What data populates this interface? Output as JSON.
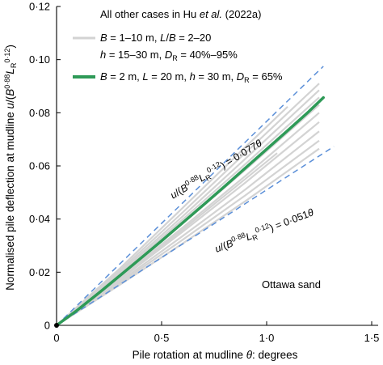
{
  "chart_data": {
    "type": "line",
    "xlabel": "Pile rotation at mudline θ: degrees",
    "ylabel": "Normalised pile deflection at mudline u/(B^0·88 L_R^0·12)",
    "xlim": [
      0,
      1.5
    ],
    "ylim": [
      0,
      0.12
    ],
    "x_ticks": [
      "0",
      "0·5",
      "1·0",
      "1·5"
    ],
    "x_tick_values": [
      0,
      0.5,
      1.0,
      1.5
    ],
    "y_ticks": [
      "0",
      "0·02",
      "0·04",
      "0·06",
      "0·08",
      "0·10",
      "0·12"
    ],
    "y_tick_values": [
      0,
      0.02,
      0.04,
      0.06,
      0.08,
      0.1,
      0.12
    ],
    "grid": false,
    "legend_position": "top-left",
    "legend": {
      "grey_title_a": "All other cases  in Hu ",
      "grey_title_et_al": "et al.",
      "grey_title_b": " (2022a)",
      "grey_line1": "B = 1–10 m, L/B = 2–20",
      "grey_line2": "h = 15–30 m, D_R = 40%–95%",
      "green_line": "B = 2 m, L = 20 m, h = 30 m, D_R = 65%"
    },
    "annotation_upper": "u/(B^0·88 L_R^0·12) = 0·077θ",
    "annotation_lower": "u/(B^0·88 L_R^0·12) = 0·051θ",
    "annotation_sand": "Ottawa sand",
    "series": [
      {
        "style": "dashed",
        "color": "#5b8fd8",
        "points": [
          [
            0,
            0
          ],
          [
            1.27,
            0.0975
          ]
        ]
      },
      {
        "style": "dashed",
        "color": "#5b8fd8",
        "points": [
          [
            0,
            0
          ],
          [
            1.32,
            0.0673
          ]
        ]
      },
      {
        "style": "bold",
        "color": "#2e9a57",
        "points": [
          [
            0,
            0
          ],
          [
            0.1,
            0.0058
          ],
          [
            0.2,
            0.0121
          ],
          [
            0.3,
            0.0186
          ],
          [
            0.4,
            0.0252
          ],
          [
            0.5,
            0.0318
          ],
          [
            0.6,
            0.0386
          ],
          [
            0.7,
            0.0454
          ],
          [
            0.8,
            0.0523
          ],
          [
            0.9,
            0.0593
          ],
          [
            1.0,
            0.0663
          ],
          [
            1.1,
            0.0733
          ],
          [
            1.2,
            0.0804
          ],
          [
            1.27,
            0.0857
          ]
        ]
      },
      {
        "style": "thin",
        "color": "#d3d3d3",
        "points": [
          [
            0,
            0
          ],
          [
            0.3,
            0.0205
          ],
          [
            0.6,
            0.0425
          ],
          [
            0.9,
            0.065
          ],
          [
            1.25,
            0.091
          ]
        ]
      },
      {
        "style": "thin",
        "color": "#d3d3d3",
        "points": [
          [
            0,
            0
          ],
          [
            0.3,
            0.0198
          ],
          [
            0.6,
            0.041
          ],
          [
            0.9,
            0.0628
          ],
          [
            1.25,
            0.0885
          ]
        ]
      },
      {
        "style": "thin",
        "color": "#d3d3d3",
        "points": [
          [
            0,
            0
          ],
          [
            0.3,
            0.0192
          ],
          [
            0.6,
            0.0398
          ],
          [
            0.9,
            0.0608
          ],
          [
            1.25,
            0.0858
          ]
        ]
      },
      {
        "style": "thin",
        "color": "#d3d3d3",
        "points": [
          [
            0,
            0
          ],
          [
            0.3,
            0.0185
          ],
          [
            0.6,
            0.0383
          ],
          [
            0.9,
            0.0586
          ],
          [
            1.25,
            0.083
          ]
        ]
      },
      {
        "style": "thin",
        "color": "#d3d3d3",
        "points": [
          [
            0,
            0
          ],
          [
            0.3,
            0.0178
          ],
          [
            0.6,
            0.0368
          ],
          [
            0.9,
            0.0563
          ],
          [
            1.25,
            0.08
          ]
        ]
      },
      {
        "style": "thin",
        "color": "#d3d3d3",
        "points": [
          [
            0,
            0
          ],
          [
            0.3,
            0.0171
          ],
          [
            0.6,
            0.0352
          ],
          [
            0.9,
            0.0538
          ],
          [
            1.25,
            0.0765
          ]
        ]
      },
      {
        "style": "thin",
        "color": "#d3d3d3",
        "points": [
          [
            0,
            0
          ],
          [
            0.3,
            0.0164
          ],
          [
            0.6,
            0.0336
          ],
          [
            0.9,
            0.0512
          ],
          [
            1.25,
            0.073
          ]
        ]
      },
      {
        "style": "thin",
        "color": "#d3d3d3",
        "points": [
          [
            0,
            0
          ],
          [
            0.3,
            0.0158
          ],
          [
            0.6,
            0.0322
          ],
          [
            0.9,
            0.049
          ],
          [
            1.25,
            0.0695
          ]
        ]
      },
      {
        "style": "thin",
        "color": "#d3d3d3",
        "points": [
          [
            0,
            0
          ],
          [
            0.3,
            0.0152
          ],
          [
            0.6,
            0.0308
          ],
          [
            0.9,
            0.0468
          ],
          [
            1.25,
            0.0665
          ]
        ]
      },
      {
        "style": "thin",
        "color": "#d3d3d3",
        "points": [
          [
            0,
            0
          ],
          [
            0.3,
            0.0213
          ],
          [
            0.6,
            0.0442
          ],
          [
            0.9,
            0.0672
          ],
          [
            1.1,
            0.0823
          ]
        ]
      },
      {
        "style": "thin",
        "color": "#d3d3d3",
        "points": [
          [
            0,
            0
          ],
          [
            0.3,
            0.0175
          ],
          [
            0.6,
            0.036
          ],
          [
            0.9,
            0.0552
          ],
          [
            1.05,
            0.0648
          ]
        ]
      }
    ]
  }
}
